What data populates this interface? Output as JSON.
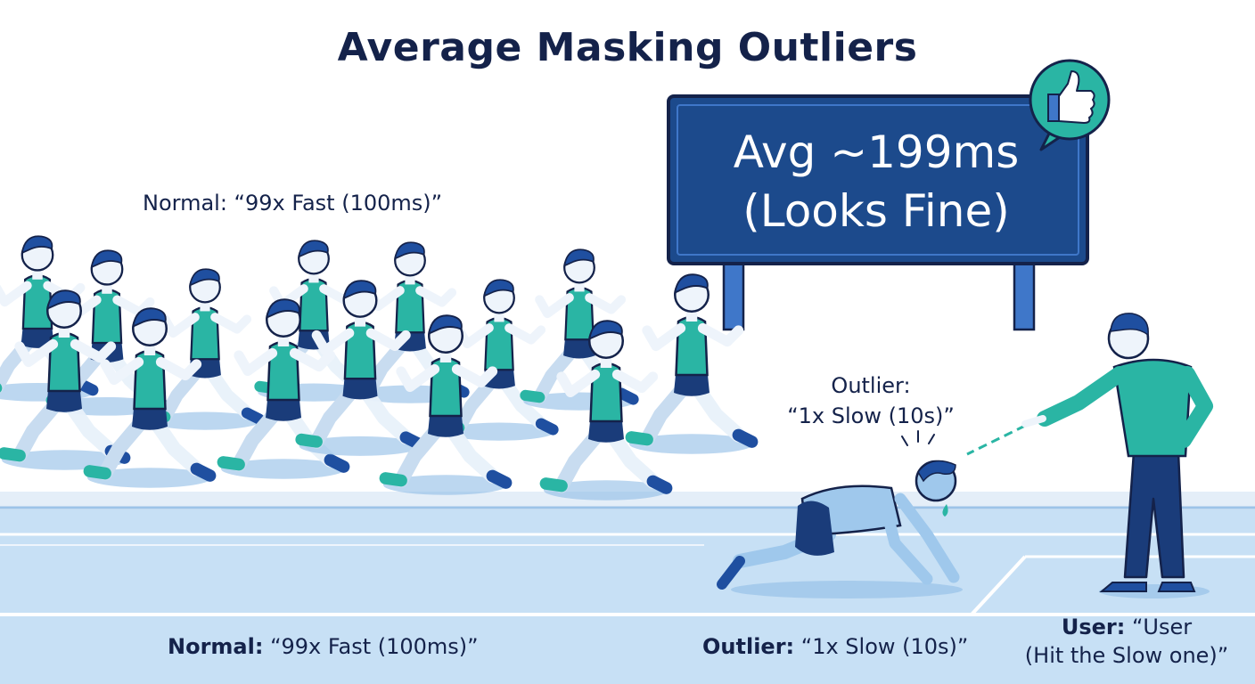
{
  "title": "Average Masking Outliers",
  "board": {
    "line1": "Avg ~199ms",
    "line2": "(Looks Fine)",
    "badge_icon": "thumbs-up-icon"
  },
  "labels": {
    "normal_top": "Normal: “99x Fast (100ms)”",
    "outlier_top_line1": "Outlier:",
    "outlier_top_line2": "“1x Slow (10s)”",
    "normal_bottom_prefix": "Normal:",
    "normal_bottom_value": "“99x Fast (100ms)”",
    "outlier_bottom_prefix": "Outlier:",
    "outlier_bottom_value": "“1x Slow (10s)”",
    "user_prefix": "User:",
    "user_line1_value": "“User",
    "user_line2": "(Hit the Slow one)”"
  },
  "colors": {
    "navy": "#14224a",
    "board_blue": "#1c4a8c",
    "teal": "#2ab5a4",
    "track": "#b8d6f1",
    "track_dark": "#98c1e8",
    "runner_blue": "#3f77c9",
    "light_blue": "#9fc8ec"
  }
}
